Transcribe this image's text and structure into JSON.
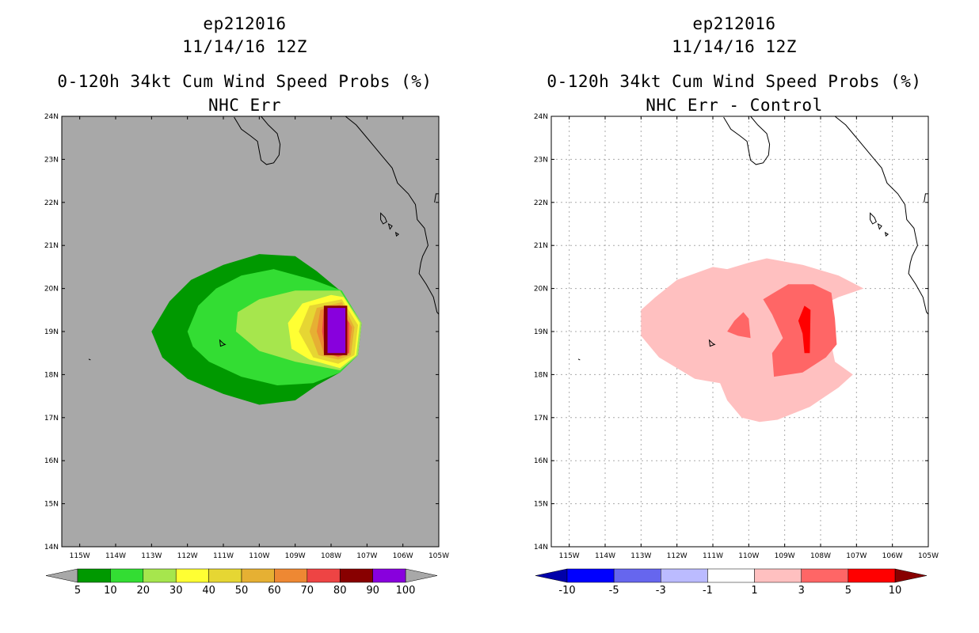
{
  "panels": [
    {
      "title_line1": "ep212016",
      "title_line2": "11/14/16 12Z",
      "title_line3": "0-120h 34kt Cum Wind Speed Probs (%)",
      "title_line4": "NHC Err",
      "background_color": "#a8a8a8",
      "colorbar_labels": [
        "5",
        "10",
        "20",
        "30",
        "40",
        "50",
        "60",
        "70",
        "80",
        "90",
        "100"
      ],
      "colorbar_colors": [
        "#a8a8a8",
        "#009900",
        "#33dd33",
        "#a6e64d",
        "#ffff33",
        "#e6d633",
        "#e6b033",
        "#ee8833",
        "#ee4444",
        "#880000",
        "#8800dd",
        "#a8a8a8"
      ]
    },
    {
      "title_line1": "ep212016",
      "title_line2": "11/14/16 12Z",
      "title_line3": "0-120h 34kt Cum Wind Speed Probs (%)",
      "title_line4": "NHC Err - Control",
      "background_color": "#ffffff",
      "colorbar_labels": [
        "-10",
        "-5",
        "-3",
        "-1",
        "1",
        "3",
        "5",
        "10"
      ],
      "colorbar_colors": [
        "#0000aa",
        "#0000ff",
        "#6666ee",
        "#bbbbff",
        "#ffffff",
        "#ffc0c0",
        "#ff6666",
        "#ff0000",
        "#880000"
      ]
    }
  ],
  "axes": {
    "lon_labels": [
      "115W",
      "114W",
      "113W",
      "112W",
      "111W",
      "110W",
      "109W",
      "108W",
      "107W",
      "106W",
      "105W"
    ],
    "lat_labels": [
      "14N",
      "15N",
      "16N",
      "17N",
      "18N",
      "19N",
      "20N",
      "21N",
      "22N",
      "23N",
      "24N"
    ],
    "lon_range": [
      -115.5,
      -105
    ],
    "lat_range": [
      14,
      24
    ]
  }
}
